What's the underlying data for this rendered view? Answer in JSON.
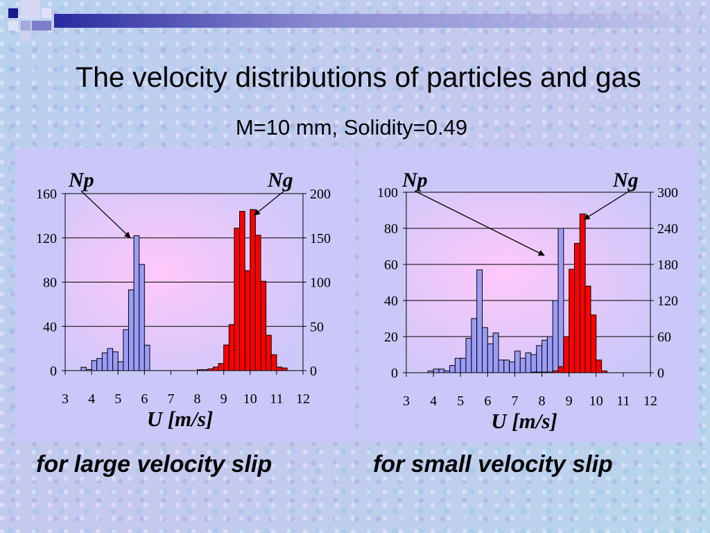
{
  "slide": {
    "title": "The velocity distributions of particles and gas",
    "subtitle": "M=10 mm, Solidity=0.49"
  },
  "colors": {
    "particles_bar": "#9a9cf6",
    "gas_bar": "#ff0000",
    "plot_bg_center": "#ffc8fa",
    "plot_bg_edge": "#cdc8fa",
    "panel_bg": "#c9c8f8"
  },
  "chart_data": [
    {
      "type": "bar",
      "xlabel": "U [m/s]",
      "x_ticks": [
        "3",
        "4",
        "5",
        "6",
        "7",
        "8",
        "9",
        "10",
        "11",
        "12"
      ],
      "xlim": [
        3,
        12
      ],
      "y_left_ticks": [
        "0",
        "40",
        "80",
        "120",
        "160"
      ],
      "y_left_lim": [
        0,
        160
      ],
      "y_right_ticks": [
        "0",
        "50",
        "100",
        "150",
        "200"
      ],
      "y_right_lim": [
        0,
        200
      ],
      "grid": true,
      "bin_width": 0.2,
      "annotations": [
        {
          "text": "Np",
          "target": "particles peak"
        },
        {
          "text": "Ng",
          "target": "gas peak"
        }
      ],
      "caption": "for large velocity slip",
      "series": [
        {
          "name": "Np",
          "axis": "left",
          "x": [
            3.6,
            3.8,
            4.0,
            4.2,
            4.4,
            4.6,
            4.8,
            5.0,
            5.2,
            5.4,
            5.6,
            5.8,
            6.0,
            6.2
          ],
          "values": [
            3,
            1,
            9,
            11,
            16,
            20,
            17,
            8,
            37,
            73,
            122,
            96,
            23,
            0
          ]
        },
        {
          "name": "Ng",
          "axis": "right",
          "x": [
            8.0,
            8.2,
            8.4,
            8.6,
            8.8,
            9.0,
            9.2,
            9.4,
            9.6,
            9.8,
            10.0,
            10.2,
            10.4,
            10.6,
            10.8,
            11.0,
            11.2
          ],
          "values": [
            1,
            1,
            2,
            4,
            8,
            29,
            52,
            161,
            180,
            113,
            182,
            153,
            101,
            40,
            18,
            4,
            3
          ]
        }
      ]
    },
    {
      "type": "bar",
      "xlabel": "U [m/s]",
      "x_ticks": [
        "3",
        "4",
        "5",
        "6",
        "7",
        "8",
        "9",
        "10",
        "11",
        "12"
      ],
      "xlim": [
        3,
        12
      ],
      "y_left_ticks": [
        "0",
        "20",
        "40",
        "60",
        "80",
        "100"
      ],
      "y_left_lim": [
        0,
        100
      ],
      "y_right_ticks": [
        "0",
        "60",
        "120",
        "180",
        "240",
        "300"
      ],
      "y_right_lim": [
        0,
        300
      ],
      "grid": true,
      "bin_width": 0.2,
      "annotations": [
        {
          "text": "Np",
          "target": "particles peak"
        },
        {
          "text": "Ng",
          "target": "gas peak"
        }
      ],
      "caption": "for small velocity slip",
      "series": [
        {
          "name": "Np",
          "axis": "left",
          "x": [
            3.8,
            4.0,
            4.2,
            4.4,
            4.6,
            4.8,
            5.0,
            5.2,
            5.4,
            5.6,
            5.8,
            6.0,
            6.2,
            6.4,
            6.6,
            6.8,
            7.0,
            7.2,
            7.4,
            7.6,
            7.8,
            8.0,
            8.2,
            8.4,
            8.6,
            8.8,
            9.0
          ],
          "values": [
            1,
            2,
            2,
            1,
            4,
            8,
            8,
            19,
            30,
            57,
            25,
            16,
            22,
            7,
            7,
            6,
            12,
            8,
            11,
            10,
            15,
            18,
            20,
            40,
            80,
            16,
            0
          ]
        },
        {
          "name": "Ng",
          "axis": "right",
          "x": [
            7.6,
            7.8,
            8.0,
            8.2,
            8.4,
            8.6,
            8.8,
            9.0,
            9.2,
            9.4,
            9.6,
            9.8,
            10.0,
            10.2
          ],
          "values": [
            1,
            1,
            1,
            1,
            3,
            10,
            60,
            172,
            215,
            264,
            144,
            96,
            21,
            3
          ]
        }
      ]
    }
  ]
}
